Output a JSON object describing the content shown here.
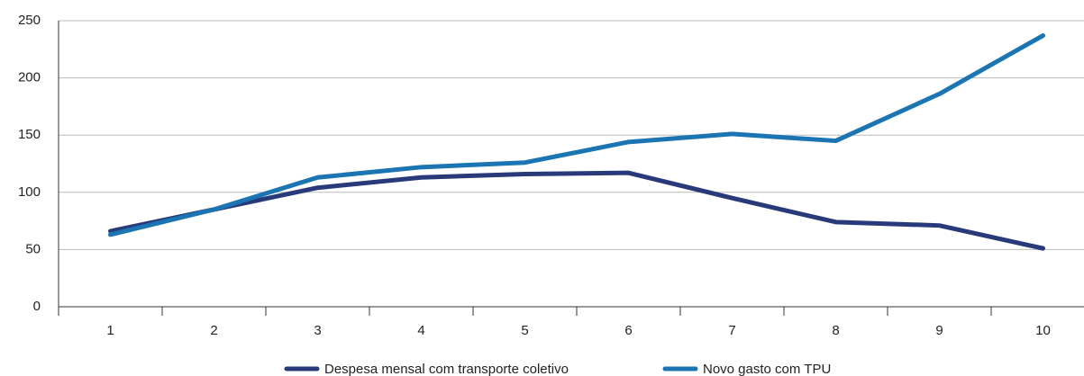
{
  "chart_data": {
    "type": "line",
    "categories": [
      "1",
      "2",
      "3",
      "4",
      "5",
      "6",
      "7",
      "8",
      "9",
      "10"
    ],
    "series": [
      {
        "name": "Despesa mensal com transporte coletivo",
        "color": "#283a7a",
        "values": [
          66,
          85,
          104,
          113,
          116,
          117,
          95,
          74,
          71,
          51
        ]
      },
      {
        "name": "Novo gasto com TPU",
        "color": "#1b75b3",
        "values": [
          63,
          85,
          113,
          122,
          126,
          144,
          151,
          145,
          186,
          237
        ]
      }
    ],
    "ylim": [
      0,
      250
    ],
    "yticks": [
      0,
      50,
      100,
      150,
      200,
      250
    ],
    "grid": true,
    "legend": "bottom"
  }
}
